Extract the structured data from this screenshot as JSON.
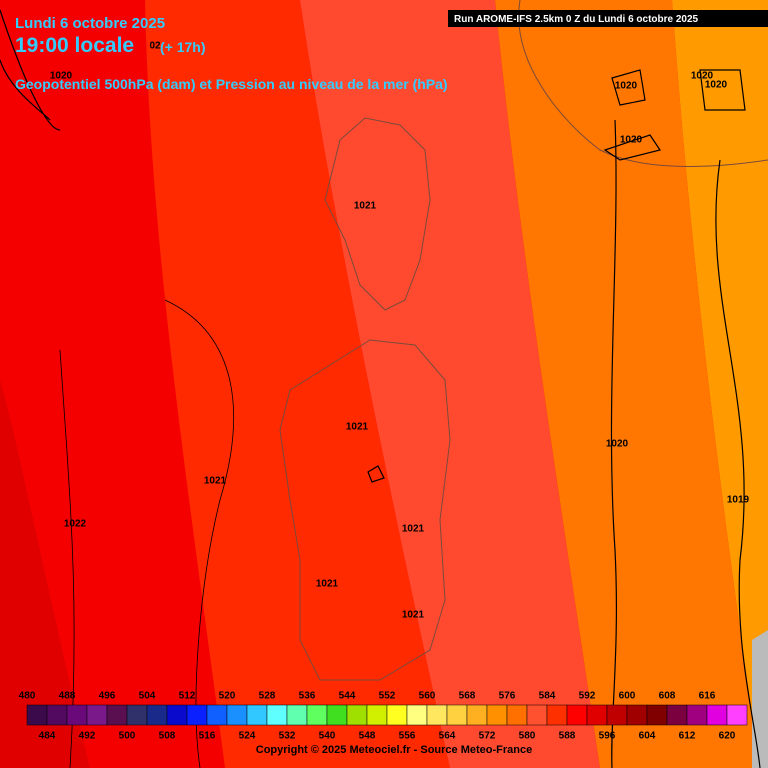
{
  "header": {
    "date": "Lundi 6 octobre 2025",
    "time": "19:00 locale",
    "lead": "(+ 17h)",
    "field": "Geopotentiel 500hPa (dam) et Pression au niveau de la mer (hPa)",
    "run": "Run AROME-IFS 2.5km 0 Z du Lundi 6 octobre 2025"
  },
  "isobar_labels": [
    "1020",
    "02",
    "1020",
    "1020",
    "1020",
    "1020",
    "1021",
    "1021",
    "1021",
    "1021",
    "1021",
    "1021",
    "1022",
    "1020",
    "1019"
  ],
  "legend": {
    "top_labels": [
      480,
      488,
      496,
      504,
      512,
      520,
      528,
      536,
      544,
      552,
      560,
      568,
      576,
      584,
      592,
      600,
      608,
      616
    ],
    "bottom_labels": [
      484,
      492,
      500,
      508,
      516,
      524,
      532,
      540,
      548,
      556,
      564,
      572,
      580,
      588,
      596,
      604,
      612,
      620
    ]
  },
  "footer": {
    "copyright": "Copyright © 2025 Meteociel.fr - Source Meteo-France"
  }
}
